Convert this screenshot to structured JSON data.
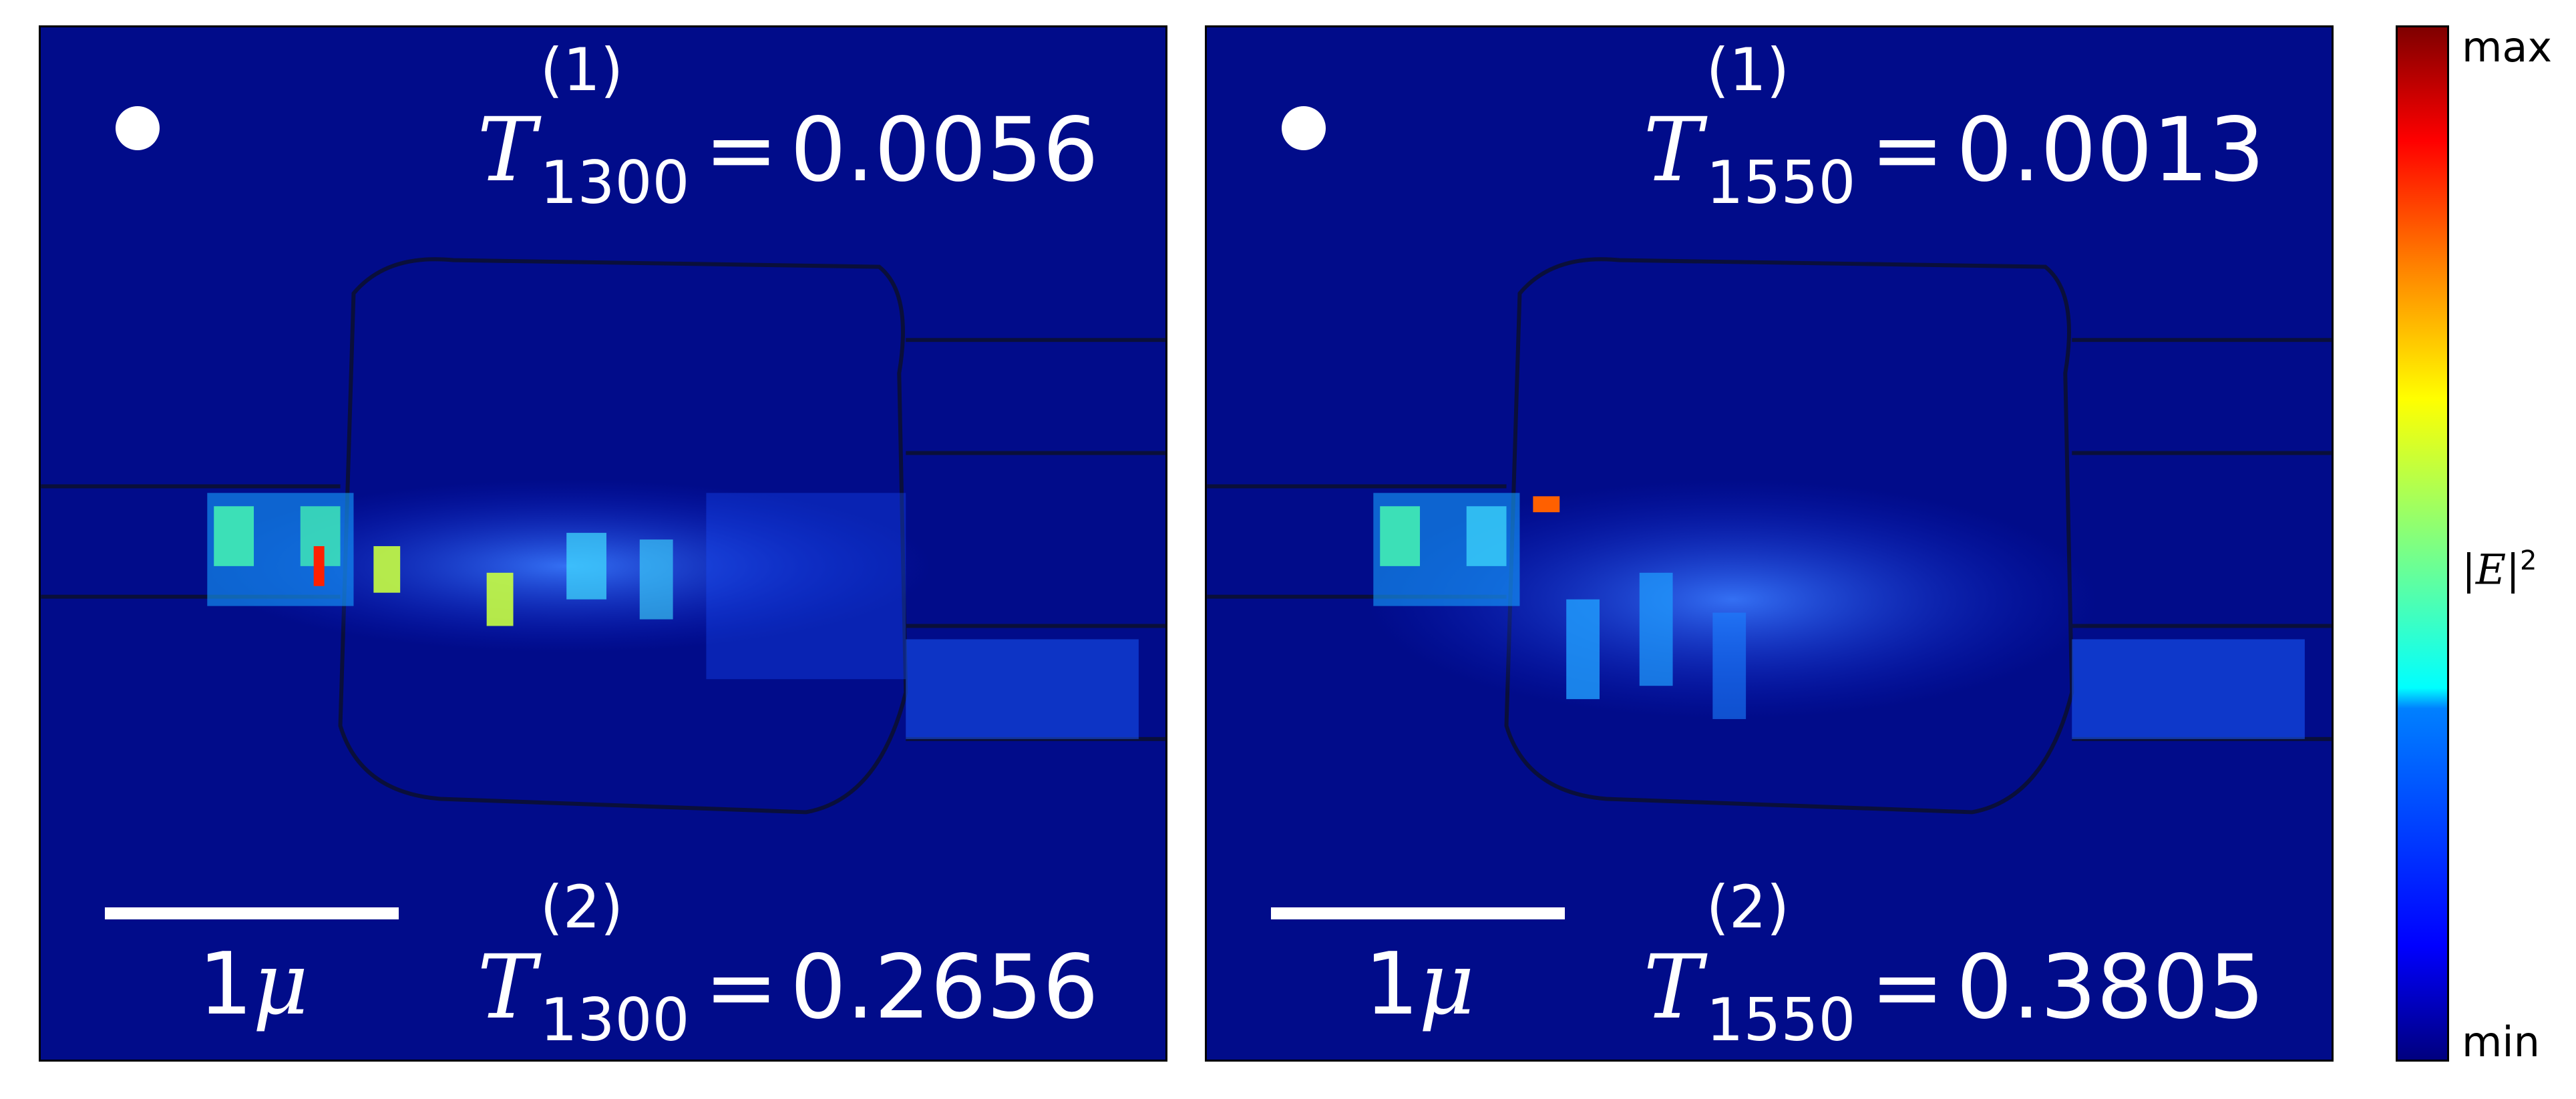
{
  "panels": [
    {
      "id": "left",
      "top_T": {
        "symbol": "T",
        "sup": "(1)",
        "sub": "1300",
        "value": "0.0056"
      },
      "bottom_T": {
        "symbol": "T",
        "sup": "(2)",
        "sub": "1300",
        "value": "0.2656"
      },
      "scale_label": {
        "num": "1",
        "unit": "μ"
      }
    },
    {
      "id": "right",
      "top_T": {
        "symbol": "T",
        "sup": "(1)",
        "sub": "1550",
        "value": "0.0013"
      },
      "bottom_T": {
        "symbol": "T",
        "sup": "(2)",
        "sub": "1550",
        "value": "0.3805"
      },
      "scale_label": {
        "num": "1",
        "unit": "μ"
      }
    }
  ],
  "colorbar": {
    "max_label": "max",
    "min_label": "min",
    "mid_label": {
      "base": "|E|",
      "exp": "2"
    },
    "colormap": "jet",
    "colors": [
      "#00007f",
      "#0000ff",
      "#0080ff",
      "#00ffff",
      "#80ff80",
      "#ffff00",
      "#ff8000",
      "#ff0000",
      "#7f0000"
    ]
  },
  "background_color": "#010c8a"
}
